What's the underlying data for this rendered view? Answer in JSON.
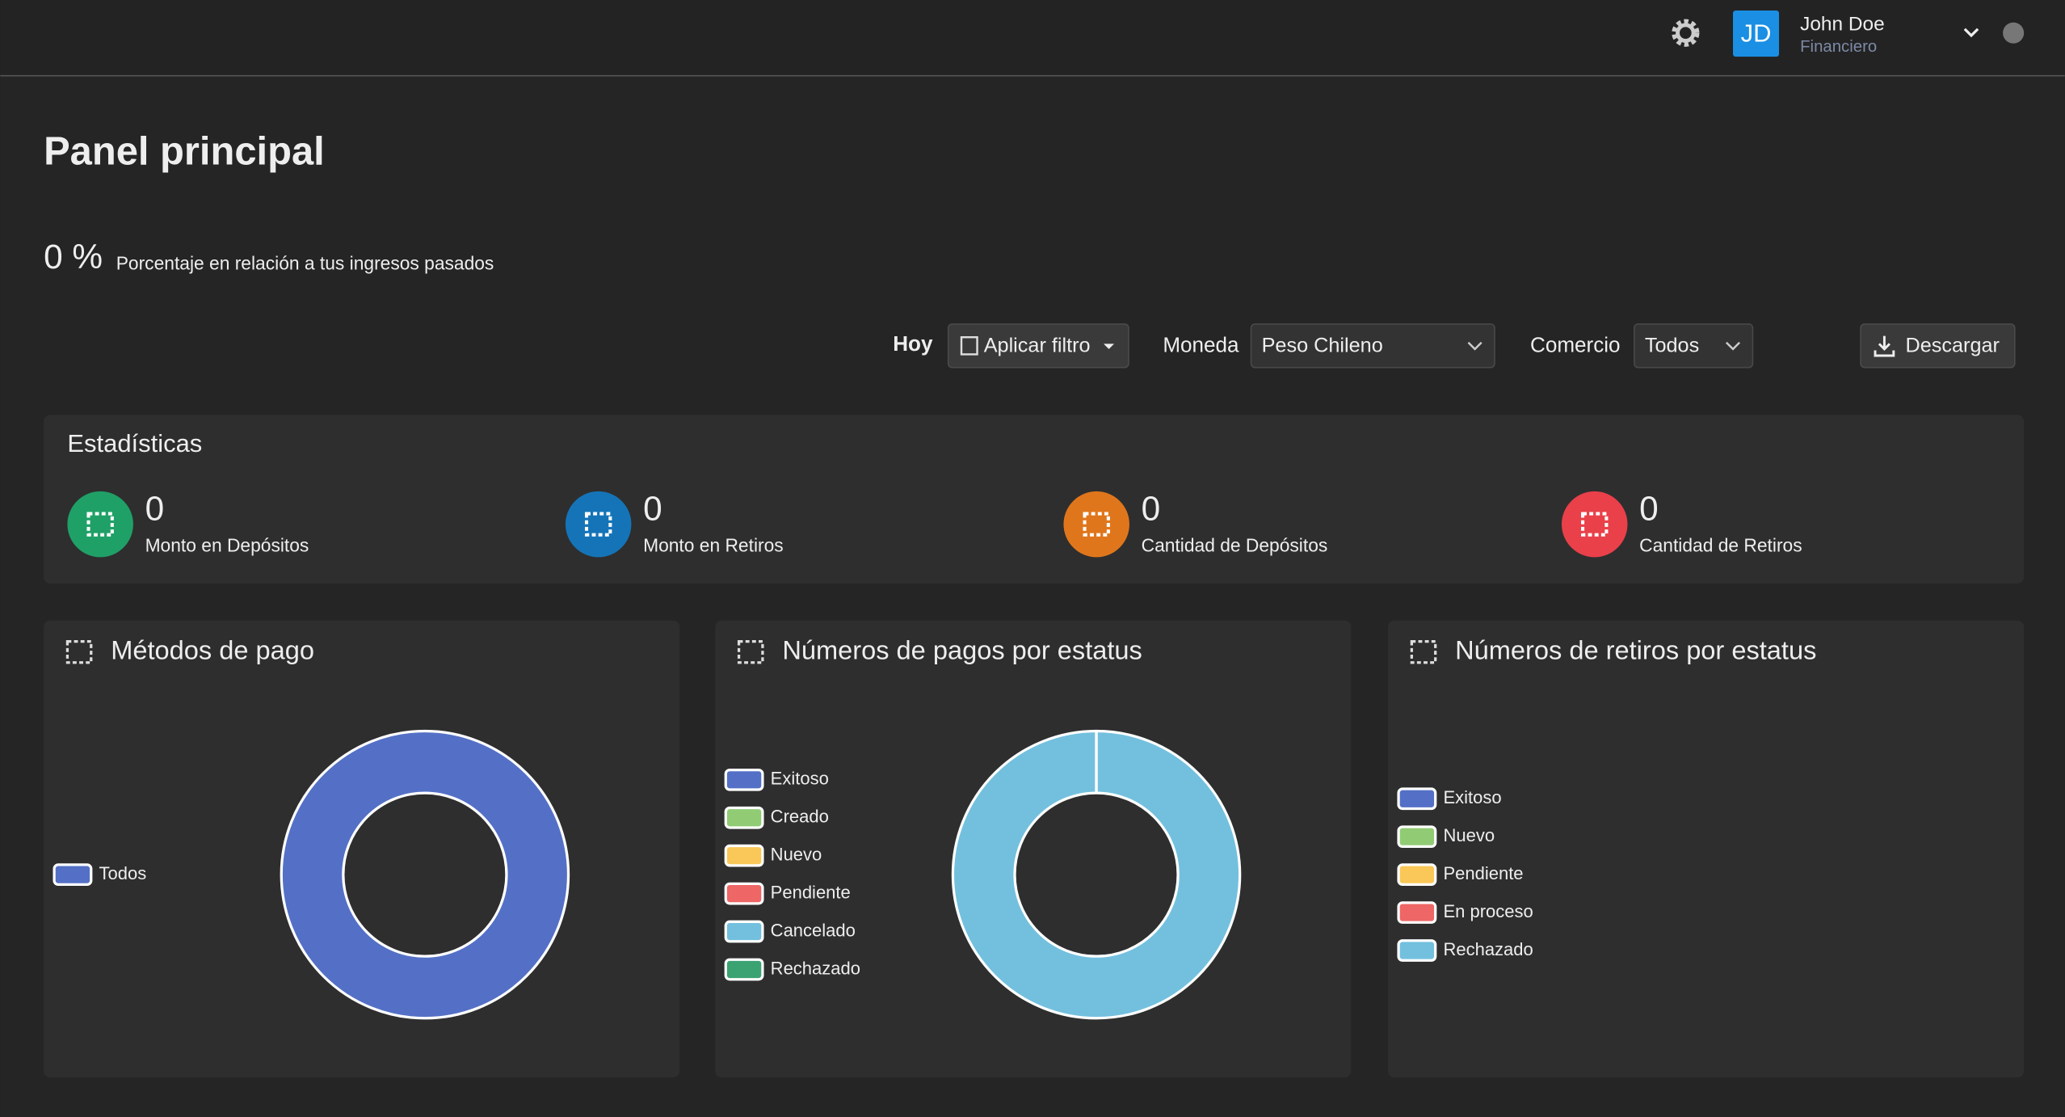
{
  "header": {
    "user_initials": "JD",
    "user_name": "John Doe",
    "user_role": "Financiero"
  },
  "page": {
    "title": "Panel principal",
    "percentage": "0 %",
    "percentage_caption": "Porcentaje en relación a tus ingresos pasados"
  },
  "filters": {
    "date_label": "Hoy",
    "filter_button": "Aplicar filtro",
    "currency_label": "Moneda",
    "currency_value": "Peso Chileno",
    "merchant_label": "Comercio",
    "merchant_value": "Todos",
    "download_button": "Descargar"
  },
  "statistics": {
    "title": "Estadísticas",
    "items": [
      {
        "value": 0,
        "label": "Monto en Depósitos",
        "color": "#1fa067"
      },
      {
        "value": 0,
        "label": "Monto en Retiros",
        "color": "#1574b8"
      },
      {
        "value": 0,
        "label": "Cantidad de Depósitos",
        "color": "#e0761b"
      },
      {
        "value": 0,
        "label": "Cantidad de Retiros",
        "color": "#e9404a"
      }
    ]
  },
  "charts": [
    {
      "title": "Métodos de pago",
      "type": "pie",
      "series": [
        {
          "name": "Todos",
          "color": "#5470c6",
          "value": 100
        }
      ]
    },
    {
      "title": "Números de pagos por estatus",
      "type": "pie",
      "series": [
        {
          "name": "Exitoso",
          "color": "#5470c6",
          "value": 0
        },
        {
          "name": "Creado",
          "color": "#91cc75",
          "value": 0
        },
        {
          "name": "Nuevo",
          "color": "#fac858",
          "value": 0
        },
        {
          "name": "Pendiente",
          "color": "#ee6666",
          "value": 0
        },
        {
          "name": "Cancelado",
          "color": "#73c0de",
          "value": 100
        },
        {
          "name": "Rechazado",
          "color": "#3ba272",
          "value": 0
        }
      ]
    },
    {
      "title": "Números de retiros por estatus",
      "type": "pie",
      "series": [
        {
          "name": "Exitoso",
          "color": "#5470c6"
        },
        {
          "name": "Nuevo",
          "color": "#91cc75"
        },
        {
          "name": "Pendiente",
          "color": "#fac858"
        },
        {
          "name": "En proceso",
          "color": "#ee6666"
        },
        {
          "name": "Rechazado",
          "color": "#73c0de"
        }
      ]
    }
  ]
}
